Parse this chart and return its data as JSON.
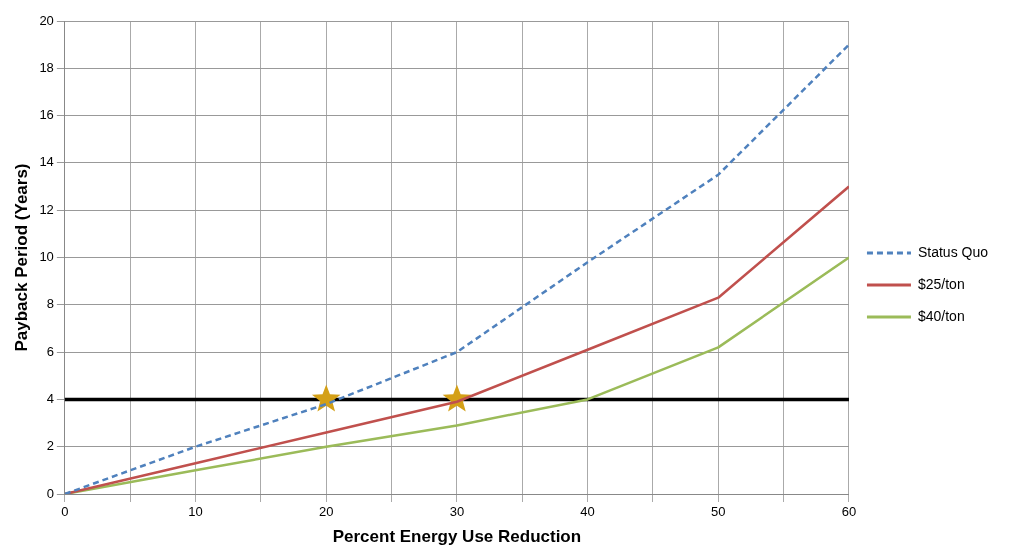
{
  "chart_data": {
    "type": "line",
    "xlabel": "Percent Energy Use Reduction",
    "ylabel": "Payback Period (Years)",
    "xlim": [
      0,
      60
    ],
    "xticks": [
      0,
      {
        "value": 5,
        "label": null
      },
      10,
      {
        "value": 15,
        "label": null
      },
      20,
      {
        "value": 25,
        "label": null
      },
      30,
      {
        "value": 35,
        "label": null
      },
      40,
      {
        "value": 45,
        "label": null
      },
      50,
      {
        "value": 55,
        "label": null
      },
      60
    ],
    "ylim": [
      0,
      20
    ],
    "yticks": [
      0,
      2,
      4,
      6,
      8,
      10,
      12,
      14,
      16,
      18,
      20
    ],
    "grid": true,
    "legend": "right",
    "marker": "none",
    "x": [
      0,
      10,
      20,
      30,
      40,
      50,
      60
    ],
    "series": [
      {
        "name": "Status Quo",
        "color": "#4f81bd",
        "line_style": "dashed",
        "values": [
          0,
          2,
          3.8,
          6,
          9.8,
          13.5,
          19
        ]
      },
      {
        "name": "$25/ton",
        "color": "#c0504d",
        "line_style": "solid",
        "values": [
          0,
          1.3,
          2.6,
          3.9,
          6.1,
          8.3,
          13
        ]
      },
      {
        "name": "$40/ton",
        "color": "#9bbb59",
        "line_style": "solid",
        "values": [
          0,
          1,
          2,
          2.9,
          4,
          6.2,
          10
        ]
      },
      {
        "type": "scatter",
        "color": "#d4a017",
        "marker": "star",
        "x": [
          20,
          30
        ],
        "values": [
          4,
          4
        ]
      }
    ],
    "ref_lines": [
      {
        "axis": "y",
        "value": 4,
        "color": "#000000",
        "line_style": "solid"
      }
    ]
  }
}
